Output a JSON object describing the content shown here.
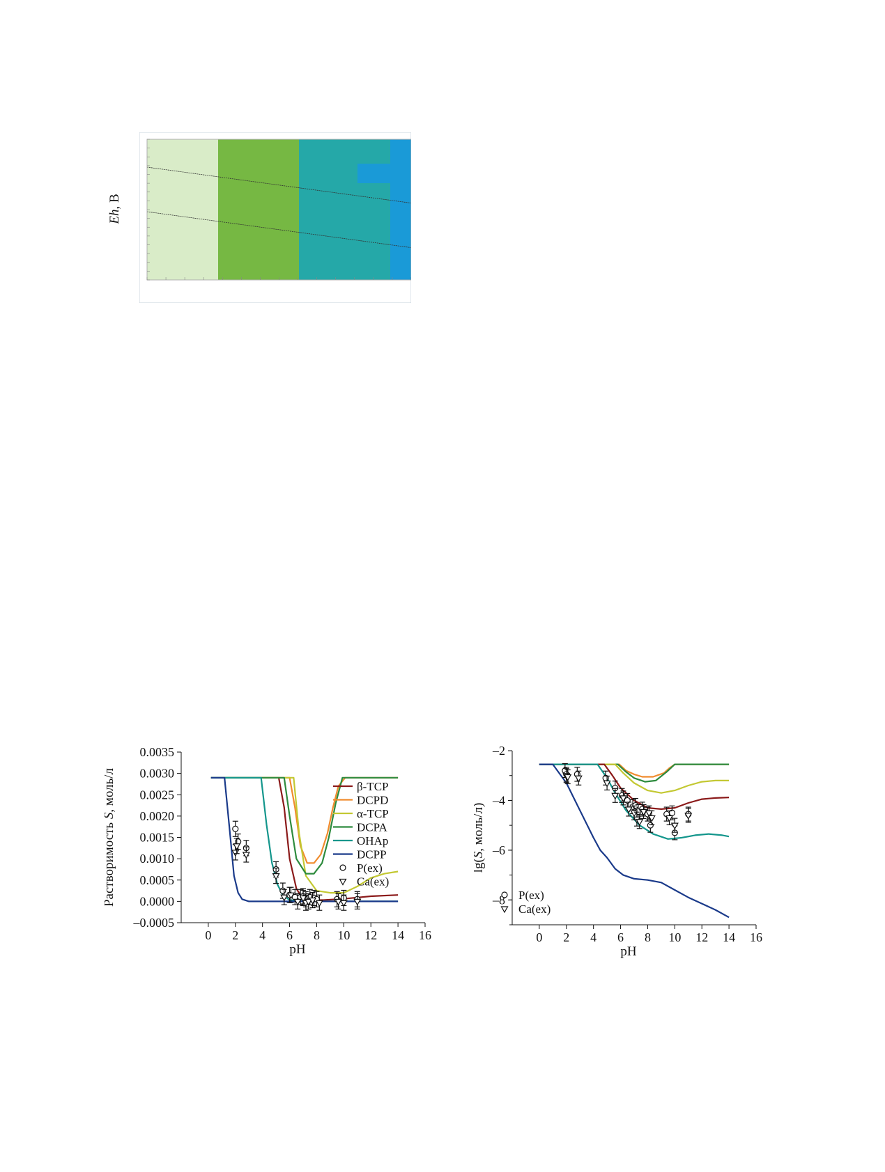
{
  "eh_diagram": {
    "ylabel_italic": "Eh",
    "ylabel_rest": ", В",
    "colors": {
      "region1": "#d9ecc8",
      "region2": "#76b843",
      "region3": "#25a8a8",
      "region4": "#1a9ad7",
      "border": "#9ab0c6"
    }
  },
  "chart_data": [
    {
      "type": "line",
      "ylabel": "Растворимость S, моль/л",
      "ylabel_italic": "S",
      "ylabel_parts": [
        "Растворимость ",
        "S",
        ", моль/л"
      ],
      "xlabel": "pH",
      "xlim": [
        -2,
        16
      ],
      "ylim": [
        -0.0005,
        0.0035
      ],
      "xticks": [
        "0",
        "2",
        "4",
        "6",
        "8",
        "10",
        "12",
        "14",
        "16"
      ],
      "yticks": [
        "0.0035",
        "0.0030",
        "0.0025",
        "0.0020",
        "0.0015",
        "0.0010",
        "0.0005",
        "0.0000",
        "–0.0005"
      ],
      "legend_position": "right",
      "series": [
        {
          "name": "β-TCP",
          "color": "#8b1a1a",
          "x": [
            0.2,
            5.2,
            5.6,
            6.0,
            6.5,
            7.0,
            7.5,
            8.5,
            10,
            12,
            14
          ],
          "y": [
            0.0029,
            0.0029,
            0.0022,
            0.001,
            0.0003,
            5e-05,
            3e-05,
            3e-05,
            6e-05,
            0.00012,
            0.00015
          ]
        },
        {
          "name": "DCPD",
          "color": "#f08c2e",
          "x": [
            0.2,
            6.0,
            6.4,
            6.8,
            7.3,
            7.8,
            8.3,
            8.8,
            9.2,
            9.6,
            10.1,
            14
          ],
          "y": [
            0.0029,
            0.0029,
            0.0022,
            0.0013,
            0.0009,
            0.0009,
            0.0011,
            0.0016,
            0.0022,
            0.0027,
            0.0029,
            0.0029
          ]
        },
        {
          "name": "α-TCP",
          "color": "#c3c832",
          "x": [
            0.2,
            6.3,
            6.7,
            7.2,
            8.0,
            9.0,
            10.0,
            11.0,
            12.0,
            13.0,
            14.0
          ],
          "y": [
            0.0029,
            0.0029,
            0.0016,
            0.0006,
            0.00025,
            0.0002,
            0.0002,
            0.00035,
            0.00055,
            0.00065,
            0.0007
          ]
        },
        {
          "name": "DCPA",
          "color": "#2e8b3e",
          "x": [
            0.2,
            5.6,
            6.0,
            6.5,
            7.2,
            7.8,
            8.4,
            8.9,
            9.4,
            9.9,
            14
          ],
          "y": [
            0.0029,
            0.0029,
            0.002,
            0.001,
            0.00065,
            0.00065,
            0.0009,
            0.0015,
            0.0023,
            0.0029,
            0.0029
          ]
        },
        {
          "name": "OHAp",
          "color": "#14968c",
          "x": [
            0.2,
            3.9,
            4.3,
            4.7,
            5.1,
            5.5,
            6.0,
            7.0,
            14
          ],
          "y": [
            0.0029,
            0.0029,
            0.0018,
            0.0009,
            0.0004,
            0.00015,
            3e-05,
            0.0,
            0.0
          ]
        },
        {
          "name": "DCPP",
          "color": "#1a3a8a",
          "x": [
            0.2,
            1.2,
            1.6,
            1.9,
            2.2,
            2.5,
            3.0,
            4.0,
            14
          ],
          "y": [
            0.0029,
            0.0029,
            0.0016,
            0.0006,
            0.0002,
            5e-05,
            0.0,
            0.0,
            0.0
          ]
        }
      ],
      "points": [
        {
          "name": "P(ex)",
          "marker": "circle",
          "x": [
            2.0,
            2.2,
            2.8,
            5.0,
            5.5,
            6.0,
            6.4,
            6.8,
            7.0,
            7.2,
            7.5,
            7.8,
            8.0,
            9.5,
            10.0,
            11.0
          ],
          "y": [
            0.0017,
            0.0014,
            0.00125,
            0.00075,
            0.00025,
            0.00015,
            0.0001,
            0.0001,
            0.00012,
            5e-05,
            0.0001,
            8e-05,
            5e-05,
            5e-05,
            8e-05,
            5e-05
          ]
        },
        {
          "name": "Ca(ex)",
          "marker": "triangle",
          "x": [
            2.0,
            2.1,
            2.8,
            5.0,
            5.6,
            6.1,
            6.6,
            7.0,
            7.2,
            7.4,
            7.7,
            8.2,
            9.6,
            10.0,
            11.0
          ],
          "y": [
            0.00115,
            0.0013,
            0.0011,
            0.0006,
            0.0001,
            0.00015,
            0.0,
            8e-05,
            -3e-05,
            0.0,
            3e-05,
            -3e-05,
            0.0,
            -3e-05,
            0.0
          ]
        }
      ],
      "legend": [
        "β-TCP",
        "DCPD",
        "α-TCP",
        "DCPA",
        "OHAp",
        "DCPP",
        "P(ex)",
        "Ca(ex)"
      ]
    },
    {
      "type": "line",
      "ylabel": "lg(S, моль/л)",
      "ylabel_parts": [
        "lg(",
        "S",
        ", моль/л)"
      ],
      "xlabel": "pH",
      "xlim": [
        -2,
        16
      ],
      "ylim": [
        -9,
        -2
      ],
      "yscale": "log10 values",
      "xticks": [
        "0",
        "2",
        "4",
        "6",
        "8",
        "10",
        "12",
        "14",
        "16"
      ],
      "yticks": [
        "–2",
        "–4",
        "–6",
        "–8"
      ],
      "legend_position": "lower-left",
      "series": [
        {
          "name": "DCPD",
          "color": "#f08c2e",
          "x": [
            0.0,
            5.9,
            6.4,
            7.0,
            7.6,
            8.4,
            9.2,
            9.6,
            10.0,
            14
          ],
          "y": [
            -2.55,
            -2.55,
            -2.8,
            -2.95,
            -3.05,
            -3.05,
            -2.9,
            -2.7,
            -2.55,
            -2.55
          ]
        },
        {
          "name": "DCPA",
          "color": "#2e8b3e",
          "x": [
            0.0,
            5.8,
            6.4,
            7.0,
            7.8,
            8.6,
            9.4,
            10.0,
            14
          ],
          "y": [
            -2.55,
            -2.55,
            -2.85,
            -3.1,
            -3.25,
            -3.2,
            -2.85,
            -2.55,
            -2.55
          ]
        },
        {
          "name": "α-TCP",
          "color": "#c3c832",
          "x": [
            0.0,
            5.6,
            6.2,
            7.0,
            8.0,
            9.0,
            10.0,
            11.0,
            12.0,
            13.0,
            14.0
          ],
          "y": [
            -2.55,
            -2.55,
            -2.9,
            -3.3,
            -3.6,
            -3.7,
            -3.6,
            -3.4,
            -3.25,
            -3.2,
            -3.2
          ]
        },
        {
          "name": "β-TCP",
          "color": "#8b1a1a",
          "x": [
            0.0,
            4.8,
            5.4,
            6.0,
            7.0,
            8.0,
            9.0,
            10.0,
            11.0,
            12.0,
            13.0,
            14.0
          ],
          "y": [
            -2.55,
            -2.55,
            -3.0,
            -3.5,
            -4.0,
            -4.3,
            -4.35,
            -4.3,
            -4.1,
            -3.95,
            -3.9,
            -3.88
          ]
        },
        {
          "name": "OHAp",
          "color": "#14968c",
          "x": [
            0.0,
            4.3,
            5.0,
            5.6,
            6.4,
            7.4,
            8.4,
            9.5,
            10.5,
            11.5,
            12.5,
            13.5,
            14.0
          ],
          "y": [
            -2.55,
            -2.55,
            -3.1,
            -3.7,
            -4.4,
            -5.0,
            -5.35,
            -5.55,
            -5.5,
            -5.4,
            -5.35,
            -5.4,
            -5.45
          ]
        },
        {
          "name": "DCPP",
          "color": "#1a3a8a",
          "x": [
            0.0,
            1.0,
            2.0,
            3.0,
            4.0,
            4.5,
            5.0,
            5.6,
            6.2,
            7.0,
            8.0,
            9.0,
            10.0,
            11.0,
            12.0,
            13.0,
            14.0
          ],
          "y": [
            -2.55,
            -2.55,
            -3.3,
            -4.4,
            -5.5,
            -6.0,
            -6.3,
            -6.75,
            -7.0,
            -7.15,
            -7.2,
            -7.3,
            -7.6,
            -7.9,
            -8.15,
            -8.4,
            -8.7
          ]
        }
      ],
      "points": [
        {
          "name": "P(ex)",
          "marker": "circle",
          "x": [
            1.9,
            2.0,
            2.8,
            4.9,
            5.6,
            6.1,
            6.5,
            6.9,
            7.1,
            7.3,
            7.6,
            8.0,
            8.2,
            9.4,
            9.8,
            10.0,
            11.0
          ],
          "y": [
            -2.8,
            -2.95,
            -2.95,
            -3.1,
            -3.5,
            -3.8,
            -4.0,
            -4.25,
            -4.2,
            -4.45,
            -4.35,
            -4.55,
            -5.0,
            -4.55,
            -4.5,
            -5.3,
            -4.55
          ]
        },
        {
          "name": "Ca(ex)",
          "marker": "triangle",
          "x": [
            2.0,
            2.1,
            2.9,
            5.0,
            5.6,
            6.2,
            6.6,
            7.0,
            7.2,
            7.4,
            7.7,
            8.1,
            8.3,
            9.6,
            10.0,
            11.0
          ],
          "y": [
            -3.0,
            -3.05,
            -3.1,
            -3.3,
            -3.8,
            -3.9,
            -4.35,
            -4.5,
            -4.75,
            -4.85,
            -4.45,
            -4.5,
            -4.7,
            -4.7,
            -5.0,
            -4.6
          ]
        }
      ],
      "legend": [
        "P(ex)",
        "Ca(ex)"
      ]
    }
  ]
}
